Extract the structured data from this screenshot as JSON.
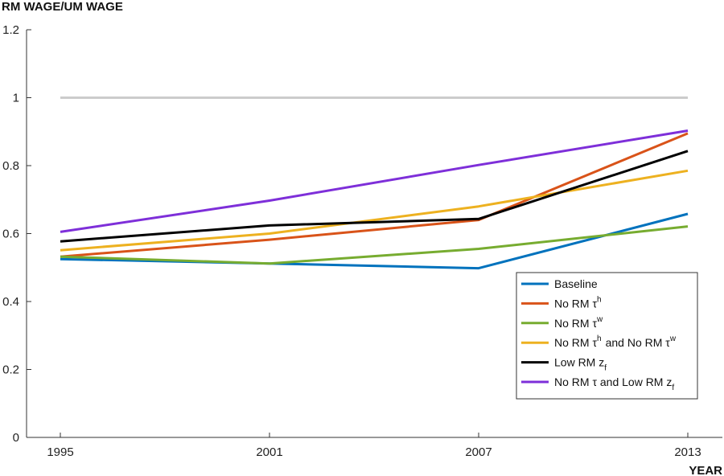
{
  "chart_data": {
    "type": "line",
    "ylabel": "RM WAGE/UM WAGE",
    "xlabel": "YEAR",
    "x": [
      "1995",
      "2001",
      "2007",
      "2013"
    ],
    "ylim": [
      0,
      1.2
    ],
    "yticks": [
      "0",
      "0.2",
      "0.4",
      "0.6",
      "0.8",
      "1",
      "1.2"
    ],
    "grid": false,
    "legend_position": "bottom-right",
    "reference_line": {
      "y": 1.0,
      "color": "#cccccc"
    },
    "series": [
      {
        "name": "Baseline",
        "name_parts": [
          {
            "t": "Baseline"
          }
        ],
        "color": "#0072BD",
        "values": [
          0.525,
          0.512,
          0.498,
          0.658
        ]
      },
      {
        "name": "No RM τh",
        "name_parts": [
          {
            "t": "No RM τ"
          },
          {
            "sup": "h"
          }
        ],
        "color": "#D95319",
        "values": [
          0.532,
          0.582,
          0.64,
          0.895
        ]
      },
      {
        "name": "No RM τw",
        "name_parts": [
          {
            "t": "No RM τ"
          },
          {
            "sup": "w"
          }
        ],
        "color": "#77AC30",
        "values": [
          0.532,
          0.512,
          0.555,
          0.621
        ]
      },
      {
        "name": "No RM τh and No RM τw",
        "name_parts": [
          {
            "t": "No RM τ"
          },
          {
            "sup": "h"
          },
          {
            "t": " and No RM τ"
          },
          {
            "sup": "w"
          }
        ],
        "color": "#EDB120",
        "values": [
          0.551,
          0.6,
          0.68,
          0.785
        ]
      },
      {
        "name": "Low RM zf",
        "name_parts": [
          {
            "t": "Low RM z"
          },
          {
            "sub": "f"
          }
        ],
        "color": "#000000",
        "values": [
          0.577,
          0.624,
          0.643,
          0.843
        ]
      },
      {
        "name": "No RM τ and Low RM zf",
        "name_parts": [
          {
            "t": "No RM τ and Low RM z"
          },
          {
            "sub": "f"
          }
        ],
        "color": "#7E2FD9",
        "values": [
          0.605,
          0.697,
          0.802,
          0.903
        ]
      }
    ]
  }
}
